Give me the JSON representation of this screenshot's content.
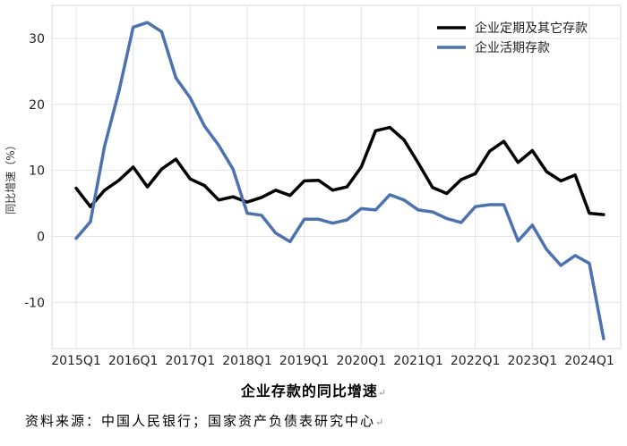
{
  "chart_data": {
    "type": "line",
    "title": "企业存款的同比增速",
    "xlabel": "",
    "ylabel": "同比增速（%）",
    "ylim": [
      -17,
      35
    ],
    "yticks": [
      -10,
      0,
      10,
      20,
      30
    ],
    "grid": true,
    "legend": "top-right",
    "x": [
      "2015Q1",
      "2015Q2",
      "2015Q3",
      "2015Q4",
      "2016Q1",
      "2016Q2",
      "2016Q3",
      "2016Q4",
      "2017Q1",
      "2017Q2",
      "2017Q3",
      "2017Q4",
      "2018Q1",
      "2018Q2",
      "2018Q3",
      "2018Q4",
      "2019Q1",
      "2019Q2",
      "2019Q3",
      "2019Q4",
      "2020Q1",
      "2020Q2",
      "2020Q3",
      "2020Q4",
      "2021Q1",
      "2021Q2",
      "2021Q3",
      "2021Q4",
      "2022Q1",
      "2022Q2",
      "2022Q3",
      "2022Q4",
      "2023Q1",
      "2023Q2",
      "2023Q3",
      "2023Q4",
      "2024Q1",
      "2024Q2"
    ],
    "xtick_labels": [
      "2015Q1",
      "2016Q1",
      "2017Q1",
      "2018Q1",
      "2019Q1",
      "2020Q1",
      "2021Q1",
      "2022Q1",
      "2023Q1",
      "2024Q1"
    ],
    "series": [
      {
        "name": "企业定期及其它存款",
        "color": "#000000",
        "values": [
          7.3,
          4.5,
          7.0,
          8.5,
          10.5,
          7.5,
          10.2,
          11.7,
          8.7,
          7.7,
          5.5,
          6.0,
          5.2,
          5.9,
          7.0,
          6.2,
          8.4,
          8.5,
          7.0,
          7.5,
          10.5,
          16.0,
          16.5,
          14.6,
          11.1,
          7.4,
          6.5,
          8.6,
          9.5,
          12.9,
          14.4,
          11.2,
          13.0,
          9.8,
          8.4,
          9.3,
          3.5,
          3.3
        ]
      },
      {
        "name": "企业活期存款",
        "color": "#4c72b0",
        "values": [
          -0.3,
          2.2,
          13.7,
          22.0,
          31.7,
          32.4,
          31.0,
          24.0,
          21.0,
          16.7,
          13.8,
          10.2,
          3.5,
          3.2,
          0.5,
          -0.8,
          2.6,
          2.6,
          2.0,
          2.5,
          4.2,
          4.0,
          6.3,
          5.5,
          4.0,
          3.7,
          2.7,
          2.1,
          4.5,
          4.8,
          4.8,
          -0.7,
          1.7,
          -2.0,
          -4.4,
          -2.9,
          -4.1,
          -15.5
        ]
      }
    ]
  },
  "caption": "企业存款的同比增速",
  "source": "资料来源：中国人民银行；国家资产负债表研究中心",
  "para_mark": "↵"
}
